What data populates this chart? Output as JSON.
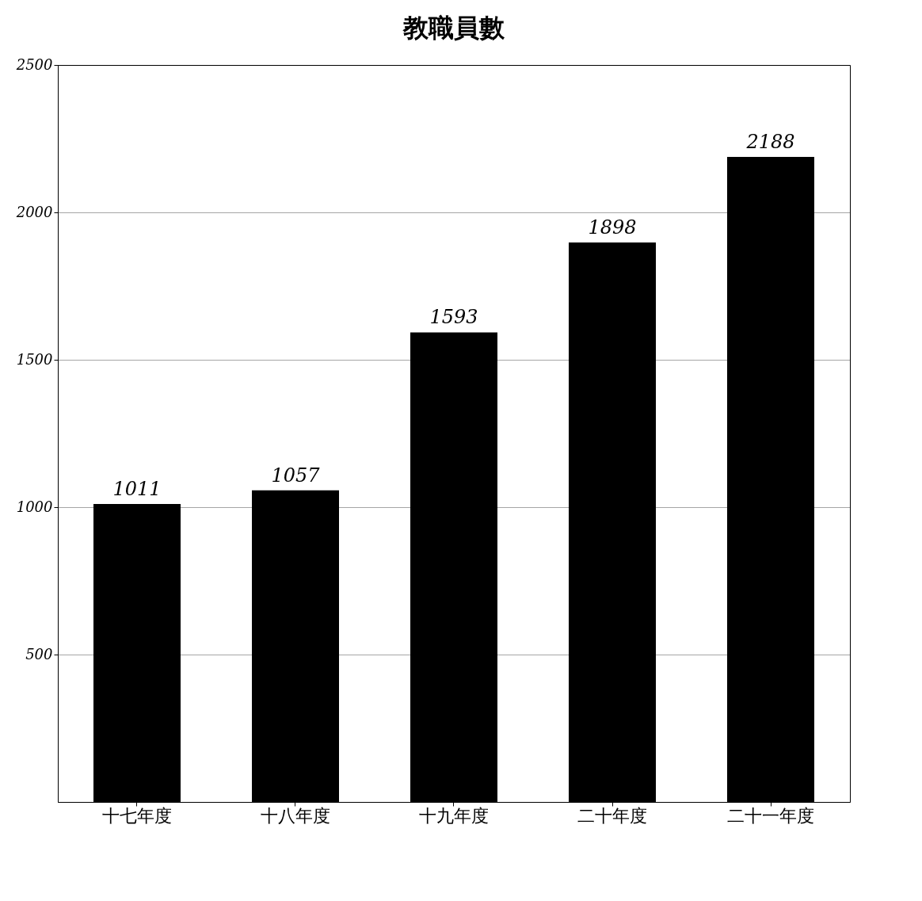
{
  "chart_data": {
    "type": "bar",
    "title": "教職員數",
    "categories": [
      "十七年度",
      "十八年度",
      "十九年度",
      "二十年度",
      "二十一年度"
    ],
    "values": [
      1011,
      1057,
      1593,
      1898,
      2188
    ],
    "color": "#000000",
    "ylim": [
      0,
      2500
    ],
    "yticks": [
      500,
      1000,
      1500,
      2000,
      2500
    ],
    "grid": "y",
    "data_labels": true
  }
}
